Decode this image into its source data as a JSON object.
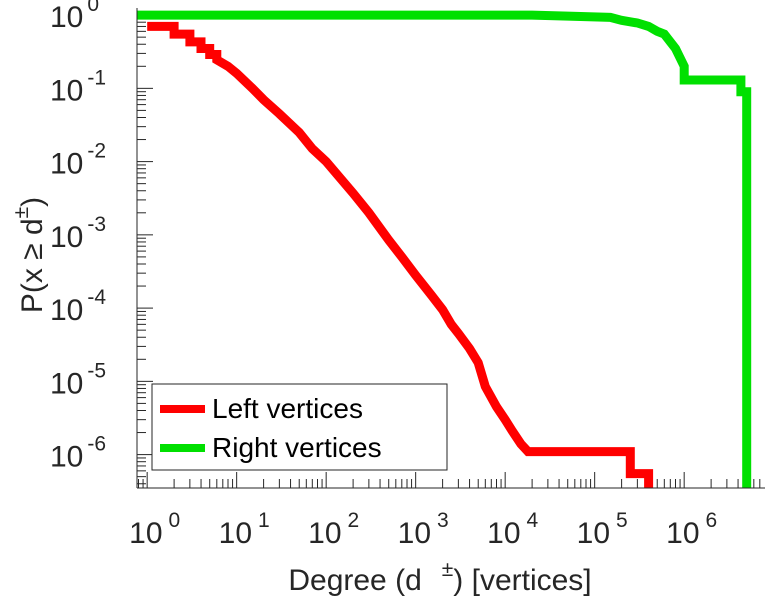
{
  "chart_data": {
    "type": "line",
    "title": "",
    "x_scale": "log",
    "y_scale": "log",
    "xlabel": {
      "main": "Degree (d",
      "sup": "±",
      "tail": ") [vertices]"
    },
    "ylabel": {
      "main": "P(x ≥ d",
      "sup": "±",
      "tail": ")"
    },
    "xlim": [
      0.77,
      8000000
    ],
    "ylim": [
      3.5e-07,
      1.25
    ],
    "x_ticks": [
      {
        "value": 1,
        "base": "10",
        "exp": "0"
      },
      {
        "value": 10,
        "base": "10",
        "exp": "1"
      },
      {
        "value": 100,
        "base": "10",
        "exp": "2"
      },
      {
        "value": 1000,
        "base": "10",
        "exp": "3"
      },
      {
        "value": 10000,
        "base": "10",
        "exp": "4"
      },
      {
        "value": 100000,
        "base": "10",
        "exp": "5"
      },
      {
        "value": 1000000,
        "base": "10",
        "exp": "6"
      }
    ],
    "y_ticks": [
      {
        "value": 1,
        "base": "10",
        "exp": "0"
      },
      {
        "value": 0.1,
        "base": "10",
        "exp": "-1"
      },
      {
        "value": 0.01,
        "base": "10",
        "exp": "-2"
      },
      {
        "value": 0.001,
        "base": "10",
        "exp": "-3"
      },
      {
        "value": 0.0001,
        "base": "10",
        "exp": "-4"
      },
      {
        "value": 1e-05,
        "base": "10",
        "exp": "-5"
      },
      {
        "value": 1e-06,
        "base": "10",
        "exp": "-6"
      }
    ],
    "legend": {
      "position": "bottom-left"
    },
    "series": [
      {
        "name": "Left vertices",
        "color": "#ff0000",
        "points": [
          [
            1,
            0.7
          ],
          [
            2,
            0.7
          ],
          [
            2,
            0.55
          ],
          [
            3,
            0.55
          ],
          [
            3,
            0.43
          ],
          [
            4,
            0.43
          ],
          [
            4,
            0.35
          ],
          [
            5,
            0.35
          ],
          [
            5,
            0.29
          ],
          [
            6,
            0.29
          ],
          [
            6,
            0.245
          ],
          [
            8,
            0.2
          ],
          [
            10,
            0.16
          ],
          [
            15,
            0.1
          ],
          [
            20,
            0.07
          ],
          [
            30,
            0.045
          ],
          [
            50,
            0.025
          ],
          [
            70,
            0.015
          ],
          [
            100,
            0.01
          ],
          [
            200,
            0.0037
          ],
          [
            300,
            0.002
          ],
          [
            500,
            0.00085
          ],
          [
            700,
            0.0005
          ],
          [
            1000,
            0.00028
          ],
          [
            1500,
            0.00015
          ],
          [
            2000,
            9.5e-05
          ],
          [
            2500,
            6e-05
          ],
          [
            3000,
            4.5e-05
          ],
          [
            4000,
            2.8e-05
          ],
          [
            5000,
            1.8e-05
          ],
          [
            6000,
            8.5e-06
          ],
          [
            8000,
            4.5e-06
          ],
          [
            10000,
            3e-06
          ],
          [
            12000,
            2.1e-06
          ],
          [
            15000,
            1.4e-06
          ],
          [
            18000,
            1.1e-06
          ],
          [
            250000,
            1.1e-06
          ],
          [
            250000,
            5.5e-07
          ],
          [
            400000,
            5.5e-07
          ],
          [
            400000,
            3.5e-07
          ]
        ]
      },
      {
        "name": "Right vertices",
        "color": "#00e000",
        "points": [
          [
            0.77,
            1
          ],
          [
            20000,
            1
          ],
          [
            50000,
            0.97
          ],
          [
            150000,
            0.93
          ],
          [
            200000,
            0.85
          ],
          [
            300000,
            0.78
          ],
          [
            400000,
            0.7
          ],
          [
            500000,
            0.6
          ],
          [
            600000,
            0.55
          ],
          [
            800000,
            0.35
          ],
          [
            1000000,
            0.2
          ],
          [
            1000000,
            0.13
          ],
          [
            4300000,
            0.13
          ],
          [
            4300000,
            0.09
          ],
          [
            5000000,
            0.09
          ],
          [
            5000000,
            3.5e-07
          ]
        ]
      }
    ]
  }
}
